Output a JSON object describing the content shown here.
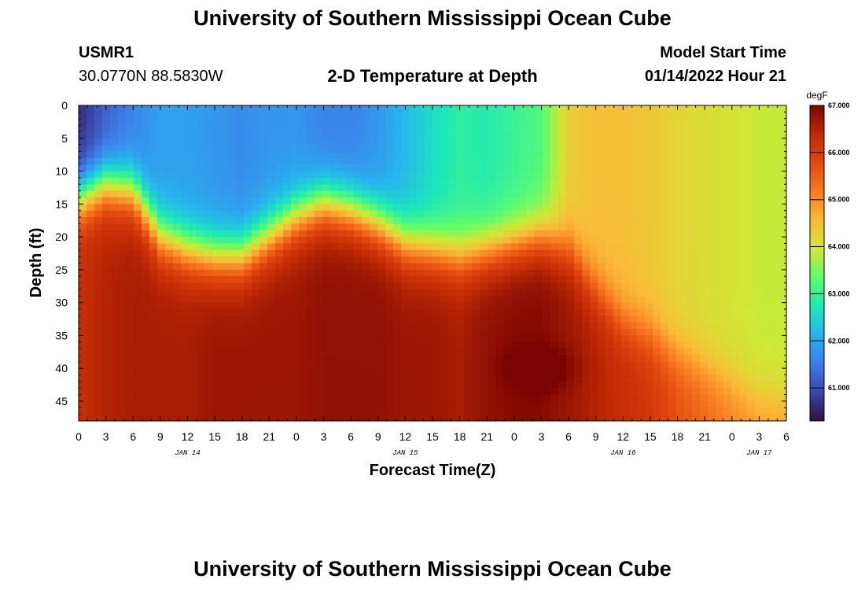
{
  "header": {
    "title": "University of Southern Mississippi Ocean Cube",
    "station_id": "USMR1",
    "coords": "30.0770N  88.5830W",
    "subtitle": "2-D Temperature at Depth",
    "model_start_label": "Model Start Time",
    "model_start_value": "01/14/2022 Hour 21"
  },
  "footer": {
    "title": "University of Southern Mississippi Ocean Cube"
  },
  "colors": {
    "scale": [
      "#30123b",
      "#3a46a8",
      "#3f7ce8",
      "#27b4ee",
      "#1de9b6",
      "#62fc6b",
      "#d1e834",
      "#faba39",
      "#f87a21",
      "#e2480f",
      "#c02a05",
      "#7a0403"
    ],
    "frame": "#000000"
  },
  "chart_data": {
    "type": "heatmap",
    "title": "2-D Temperature at Depth",
    "xlabel": "Forecast Time(Z)",
    "ylabel": "Depth (ft)",
    "x_ticks": [
      "0",
      "3",
      "6",
      "9",
      "12",
      "15",
      "18",
      "21",
      "0",
      "3",
      "6",
      "9",
      "12",
      "15",
      "18",
      "21",
      "0",
      "3",
      "6",
      "9",
      "12",
      "15",
      "18",
      "21",
      "0",
      "3",
      "6"
    ],
    "x_range_hours": [
      0,
      78
    ],
    "date_labels": [
      {
        "text": "JAN 14",
        "hour": 12
      },
      {
        "text": "JAN 15",
        "hour": 36
      },
      {
        "text": "JAN 16",
        "hour": 60
      },
      {
        "text": "JAN 17",
        "hour": 75
      }
    ],
    "y_ticks": [
      0,
      5,
      10,
      15,
      20,
      25,
      30,
      35,
      40,
      45
    ],
    "y_range_ft": [
      0,
      48
    ],
    "colorbar": {
      "unit": "degF",
      "min": 60.3,
      "max": 67.0,
      "tick_values": [
        67.0,
        66.0,
        65.0,
        64.0,
        63.0,
        62.0,
        61.0
      ],
      "tick_labels": [
        "67.000",
        "66.000",
        "65.000",
        "64.000",
        "63.000",
        "62.000",
        "61.000"
      ]
    },
    "thermocline_hours": [
      0,
      3,
      6,
      9,
      12,
      15,
      18,
      21,
      24,
      27,
      30,
      33,
      36,
      39,
      42,
      45,
      48,
      51,
      54,
      57,
      60,
      63,
      66,
      69,
      72,
      75,
      78
    ],
    "thermocline_depth_ft": [
      14,
      12,
      13,
      20,
      22,
      23,
      23,
      20,
      17,
      15,
      16,
      18,
      21,
      22,
      23,
      22,
      21,
      20,
      22,
      28,
      33,
      35,
      38,
      40,
      42,
      44,
      45
    ],
    "surface_temp_degF": [
      60.6,
      61.2,
      61.6,
      61.9,
      61.9,
      61.8,
      61.7,
      61.8,
      61.8,
      61.6,
      61.6,
      61.8,
      62.2,
      62.6,
      62.9,
      62.8,
      63.0,
      63.2,
      64.3,
      64.5,
      64.5,
      64.4,
      64.2,
      64.1,
      64.0,
      63.9,
      63.9
    ],
    "deep_temp_degF": [
      66.3,
      66.5,
      66.6,
      66.6,
      66.6,
      66.7,
      66.7,
      66.7,
      66.7,
      66.8,
      66.8,
      66.8,
      66.7,
      66.7,
      66.6,
      66.8,
      66.9,
      66.9,
      66.7,
      66.5,
      66.3,
      66.1,
      65.7,
      65.4,
      65.1,
      64.9,
      64.9
    ],
    "cold_anomaly": {
      "hour": 51,
      "depth_ft": 40,
      "temp_degF": 67.0
    }
  }
}
